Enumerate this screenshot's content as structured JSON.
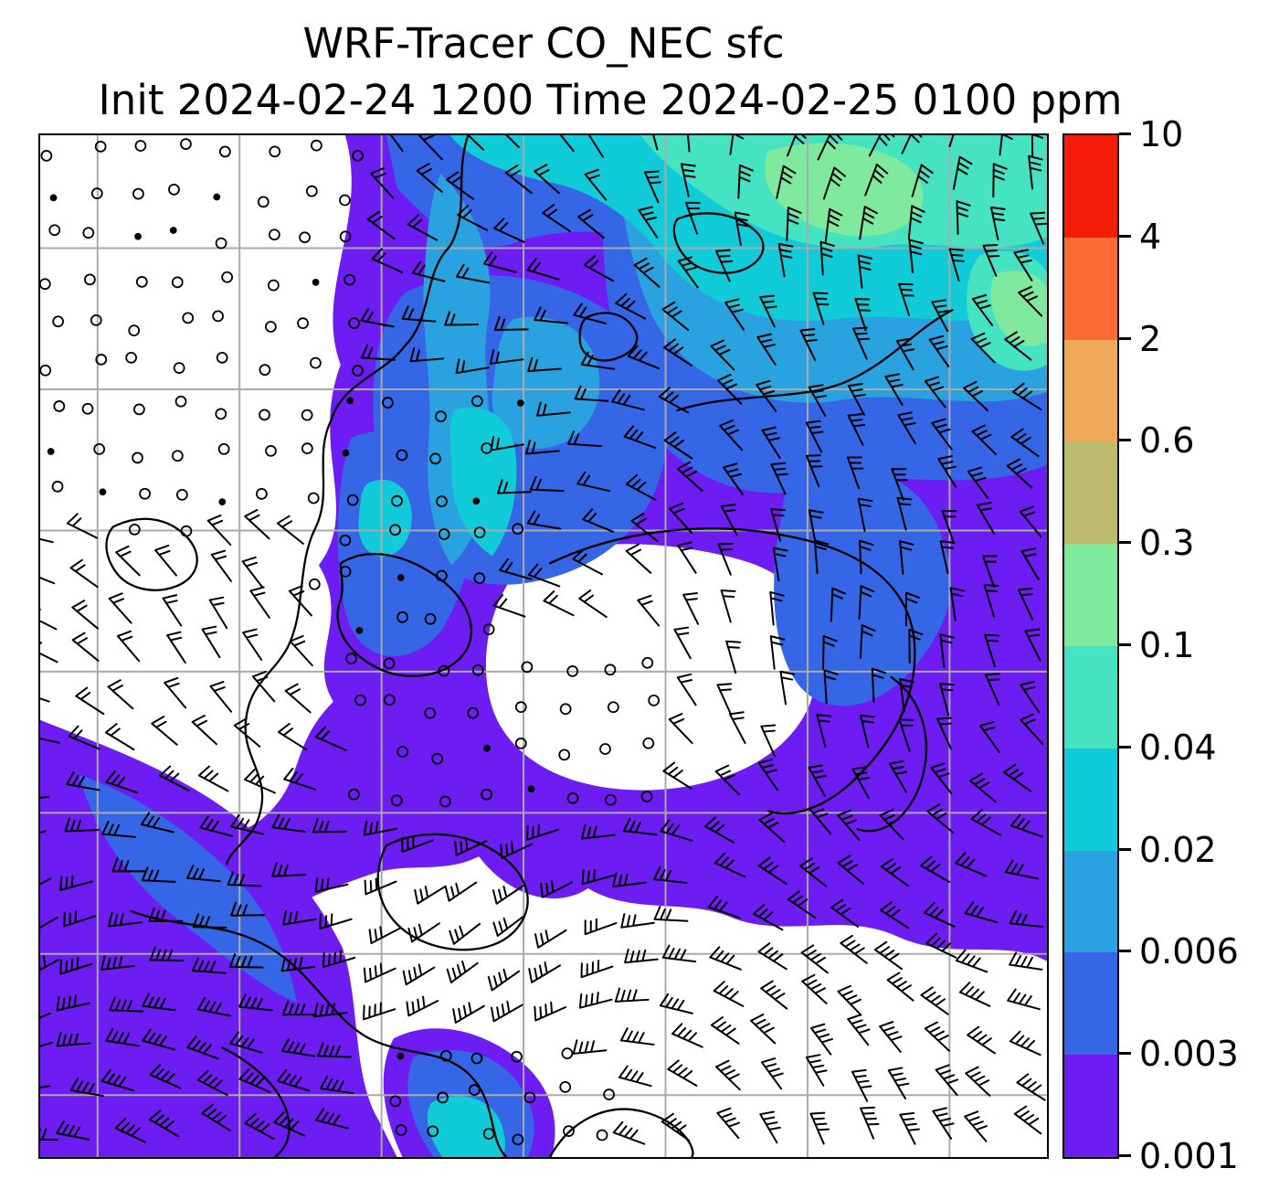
{
  "figure": {
    "title": "WRF-Tracer CO_NEC sfc",
    "subtitle": "Init 2024-02-24 1200 Time 2024-02-25 0100 ppm"
  },
  "chart_data": {
    "type": "heatmap",
    "title": "WRF-Tracer CO_NEC sfc",
    "init_time": "2024-02-24 1200",
    "valid_time": "2024-02-25 0100",
    "variable": "CO_NEC",
    "level": "sfc",
    "units": "ppm",
    "colorbar": {
      "orientation": "vertical",
      "scale": "discrete (log-like levels)",
      "levels_ppm": [
        0.001,
        0.003,
        0.006,
        0.02,
        0.04,
        0.1,
        0.3,
        0.6,
        2,
        4,
        10
      ],
      "tick_labels_top_to_bottom": [
        "10",
        "4",
        "2",
        "0.6",
        "0.3",
        "0.1",
        "0.04",
        "0.02",
        "0.006",
        "0.003",
        "0.001"
      ],
      "colors_bottom_to_top": [
        "#6d1cf1",
        "#3566e6",
        "#2ba2e0",
        "#12cbd8",
        "#46e3c3",
        "#7fe99d",
        "#bcba6c",
        "#f0a95a",
        "#fa6b35",
        "#f51d0a"
      ]
    },
    "grid": {
      "color": "#aaaaaa",
      "vertical_lines": 7,
      "horizontal_lines": 7
    },
    "overlays": [
      "filled concentration contours",
      "wind barbs",
      "calm-wind circles",
      "coastlines",
      "lat-lon gridlines"
    ],
    "field_summary": [
      {
        "region": "northwest quadrant",
        "co_ppm": "< 0.001",
        "winds": "calm (open circles)"
      },
      {
        "region": "north-center strip",
        "co_ppm": "0.02 - 0.04"
      },
      {
        "region": "northeast",
        "co_ppm": "0.006 - 0.1 with patches 0.1 - 0.3"
      },
      {
        "region": "center and east",
        "co_ppm": "0.001 - 0.02"
      },
      {
        "region": "central pocket",
        "co_ppm": "< 0.001",
        "winds": "light, some calm circles"
      },
      {
        "region": "southwest diagonal band",
        "co_ppm": "0.001 - 0.006"
      },
      {
        "region": "south and southeast",
        "co_ppm": "< 0.001",
        "winds": "strong westerly (multi-tick barbs)"
      }
    ]
  }
}
